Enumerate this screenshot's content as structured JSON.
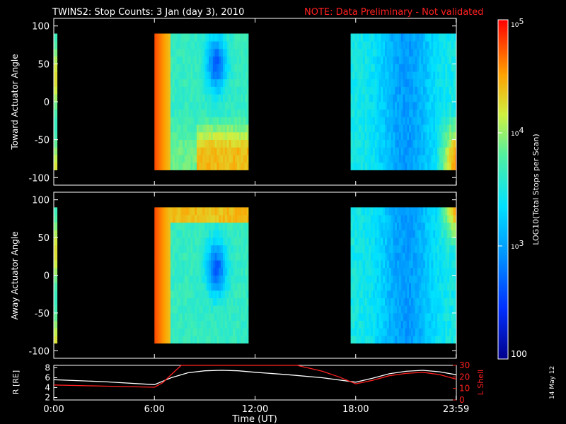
{
  "header": {
    "title": "TWINS2: Stop Counts:  3 Jan (day   3), 2010",
    "note": "NOTE: Data Preliminary - Not validated"
  },
  "side_date": "14 May 12",
  "colorbar": {
    "label": "LOG10(Total Stops per Scan)",
    "ticks": [
      {
        "text": "10^5",
        "value": 100000
      },
      {
        "text": "10^4",
        "value": 10000
      },
      {
        "text": "10^3",
        "value": 1000
      },
      {
        "text": "100",
        "value": 100
      }
    ]
  },
  "chart_data": [
    {
      "type": "heatmap",
      "ylabel": "Toward Actuator Angle",
      "ylim": [
        -110,
        110
      ],
      "yticks": [
        "100",
        "50",
        "0",
        "-50",
        "-100"
      ],
      "xlim": [
        0,
        24
      ],
      "data_extent_y": [
        -90,
        90
      ],
      "segments": [
        {
          "start_h": 0.0,
          "end_h": 0.2
        },
        {
          "start_h": 6.0,
          "end_h": 11.6
        },
        {
          "start_h": 17.7,
          "end_h": 24.0
        }
      ]
    },
    {
      "type": "heatmap",
      "ylabel": "Away Actuator Angle",
      "ylim": [
        -110,
        110
      ],
      "yticks": [
        "100",
        "50",
        "0",
        "-50",
        "-100"
      ],
      "xlim": [
        0,
        24
      ],
      "data_extent_y": [
        -90,
        90
      ],
      "segments": [
        {
          "start_h": 0.0,
          "end_h": 0.2
        },
        {
          "start_h": 6.0,
          "end_h": 11.6
        },
        {
          "start_h": 17.7,
          "end_h": 24.0
        }
      ]
    },
    {
      "type": "line",
      "xlabel": "Time (UT)",
      "ylabel_left": "R [RE]",
      "ylabel_right": "L Shell",
      "ylim_left": [
        1.5,
        8.5
      ],
      "ylim_right": [
        0,
        30
      ],
      "yticks_left": [
        "8",
        "6",
        "4",
        "2"
      ],
      "yticks_right": [
        "30",
        "20",
        "10",
        "0"
      ],
      "xticks": [
        "0:00",
        "6:00",
        "12:00",
        "18:00",
        "23:59"
      ],
      "series": [
        {
          "name": "R",
          "color": "#ffffff",
          "axis": "left",
          "points": [
            [
              0,
              5.6
            ],
            [
              3,
              5.2
            ],
            [
              6,
              4.6
            ],
            [
              7,
              6.0
            ],
            [
              8,
              7.0
            ],
            [
              9,
              7.4
            ],
            [
              10,
              7.5
            ],
            [
              11,
              7.4
            ],
            [
              12,
              7.1
            ],
            [
              14,
              6.6
            ],
            [
              16,
              6.0
            ],
            [
              18,
              5.1
            ],
            [
              19,
              5.9
            ],
            [
              20,
              6.8
            ],
            [
              21,
              7.3
            ],
            [
              22,
              7.5
            ],
            [
              23,
              7.2
            ],
            [
              24,
              6.6
            ]
          ]
        },
        {
          "name": "L Shell",
          "color": "#ff2020",
          "axis": "right",
          "points": [
            [
              0,
              13
            ],
            [
              3,
              12
            ],
            [
              6,
              11
            ],
            [
              6.5,
              15
            ],
            [
              7,
              22
            ],
            [
              7.6,
              30
            ],
            [
              14.5,
              30
            ],
            [
              16,
              25
            ],
            [
              17,
              20
            ],
            [
              18,
              14
            ],
            [
              19,
              17
            ],
            [
              20,
              21
            ],
            [
              21,
              23
            ],
            [
              22,
              24
            ],
            [
              23,
              22
            ],
            [
              24,
              18
            ]
          ]
        }
      ]
    }
  ]
}
